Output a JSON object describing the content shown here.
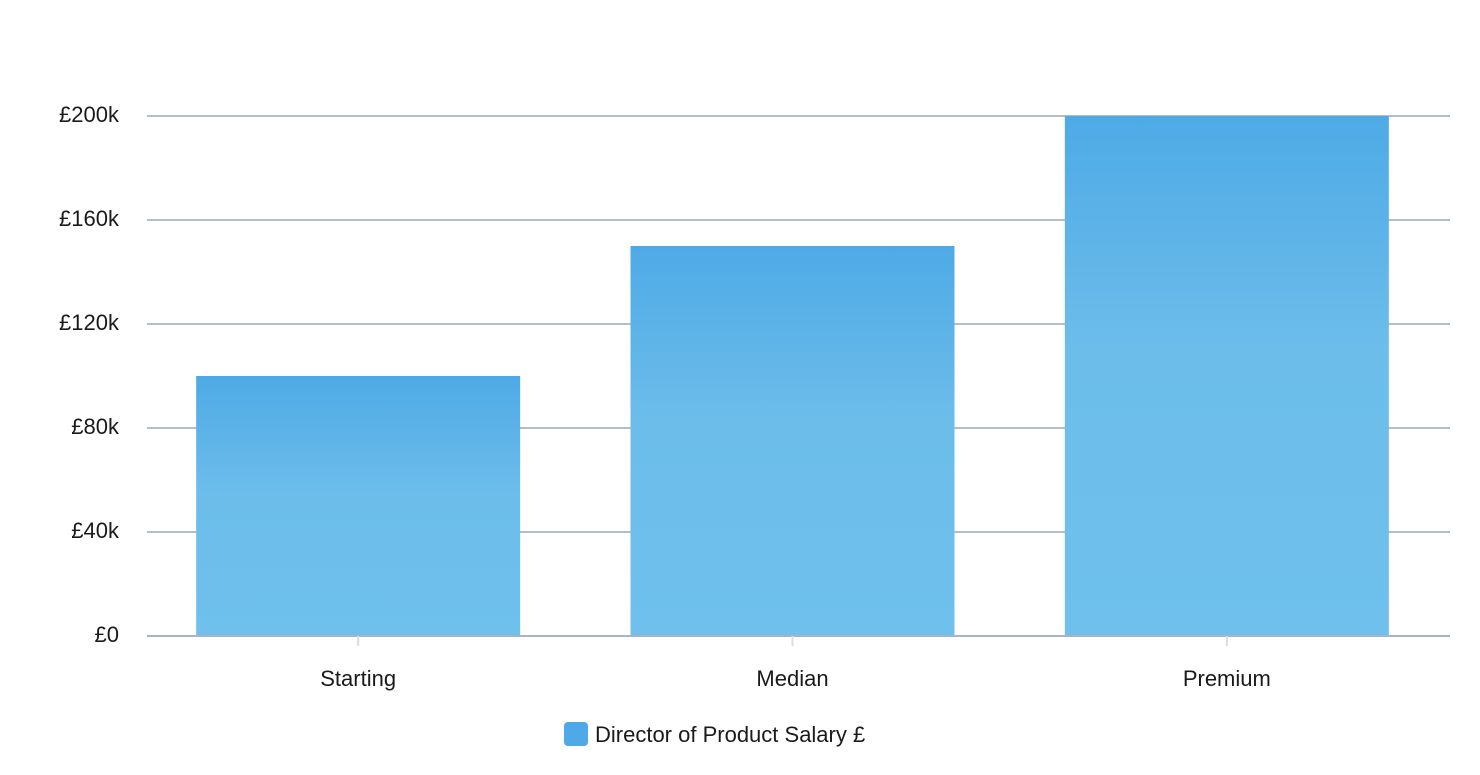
{
  "chart_data": {
    "type": "bar",
    "categories": [
      "Starting",
      "Median",
      "Premium"
    ],
    "series": [
      {
        "name": "Director of Product Salary £",
        "values": [
          100000,
          150000,
          200000
        ]
      }
    ],
    "ylim": [
      0,
      200000
    ],
    "yticks": [
      0,
      40000,
      80000,
      120000,
      160000,
      200000
    ],
    "ytick_labels": [
      "£0",
      "£40k",
      "£80k",
      "£120k",
      "£160k",
      "£200k"
    ],
    "grid": true,
    "legend_position": "bottom-center",
    "colors": {
      "bar_top": "#4eaae6",
      "bar_bottom": "#6fc0ec",
      "gridline": "#9aa8b5",
      "axis": "#a9b4bf",
      "legend_swatch": "#4eaae6"
    }
  }
}
